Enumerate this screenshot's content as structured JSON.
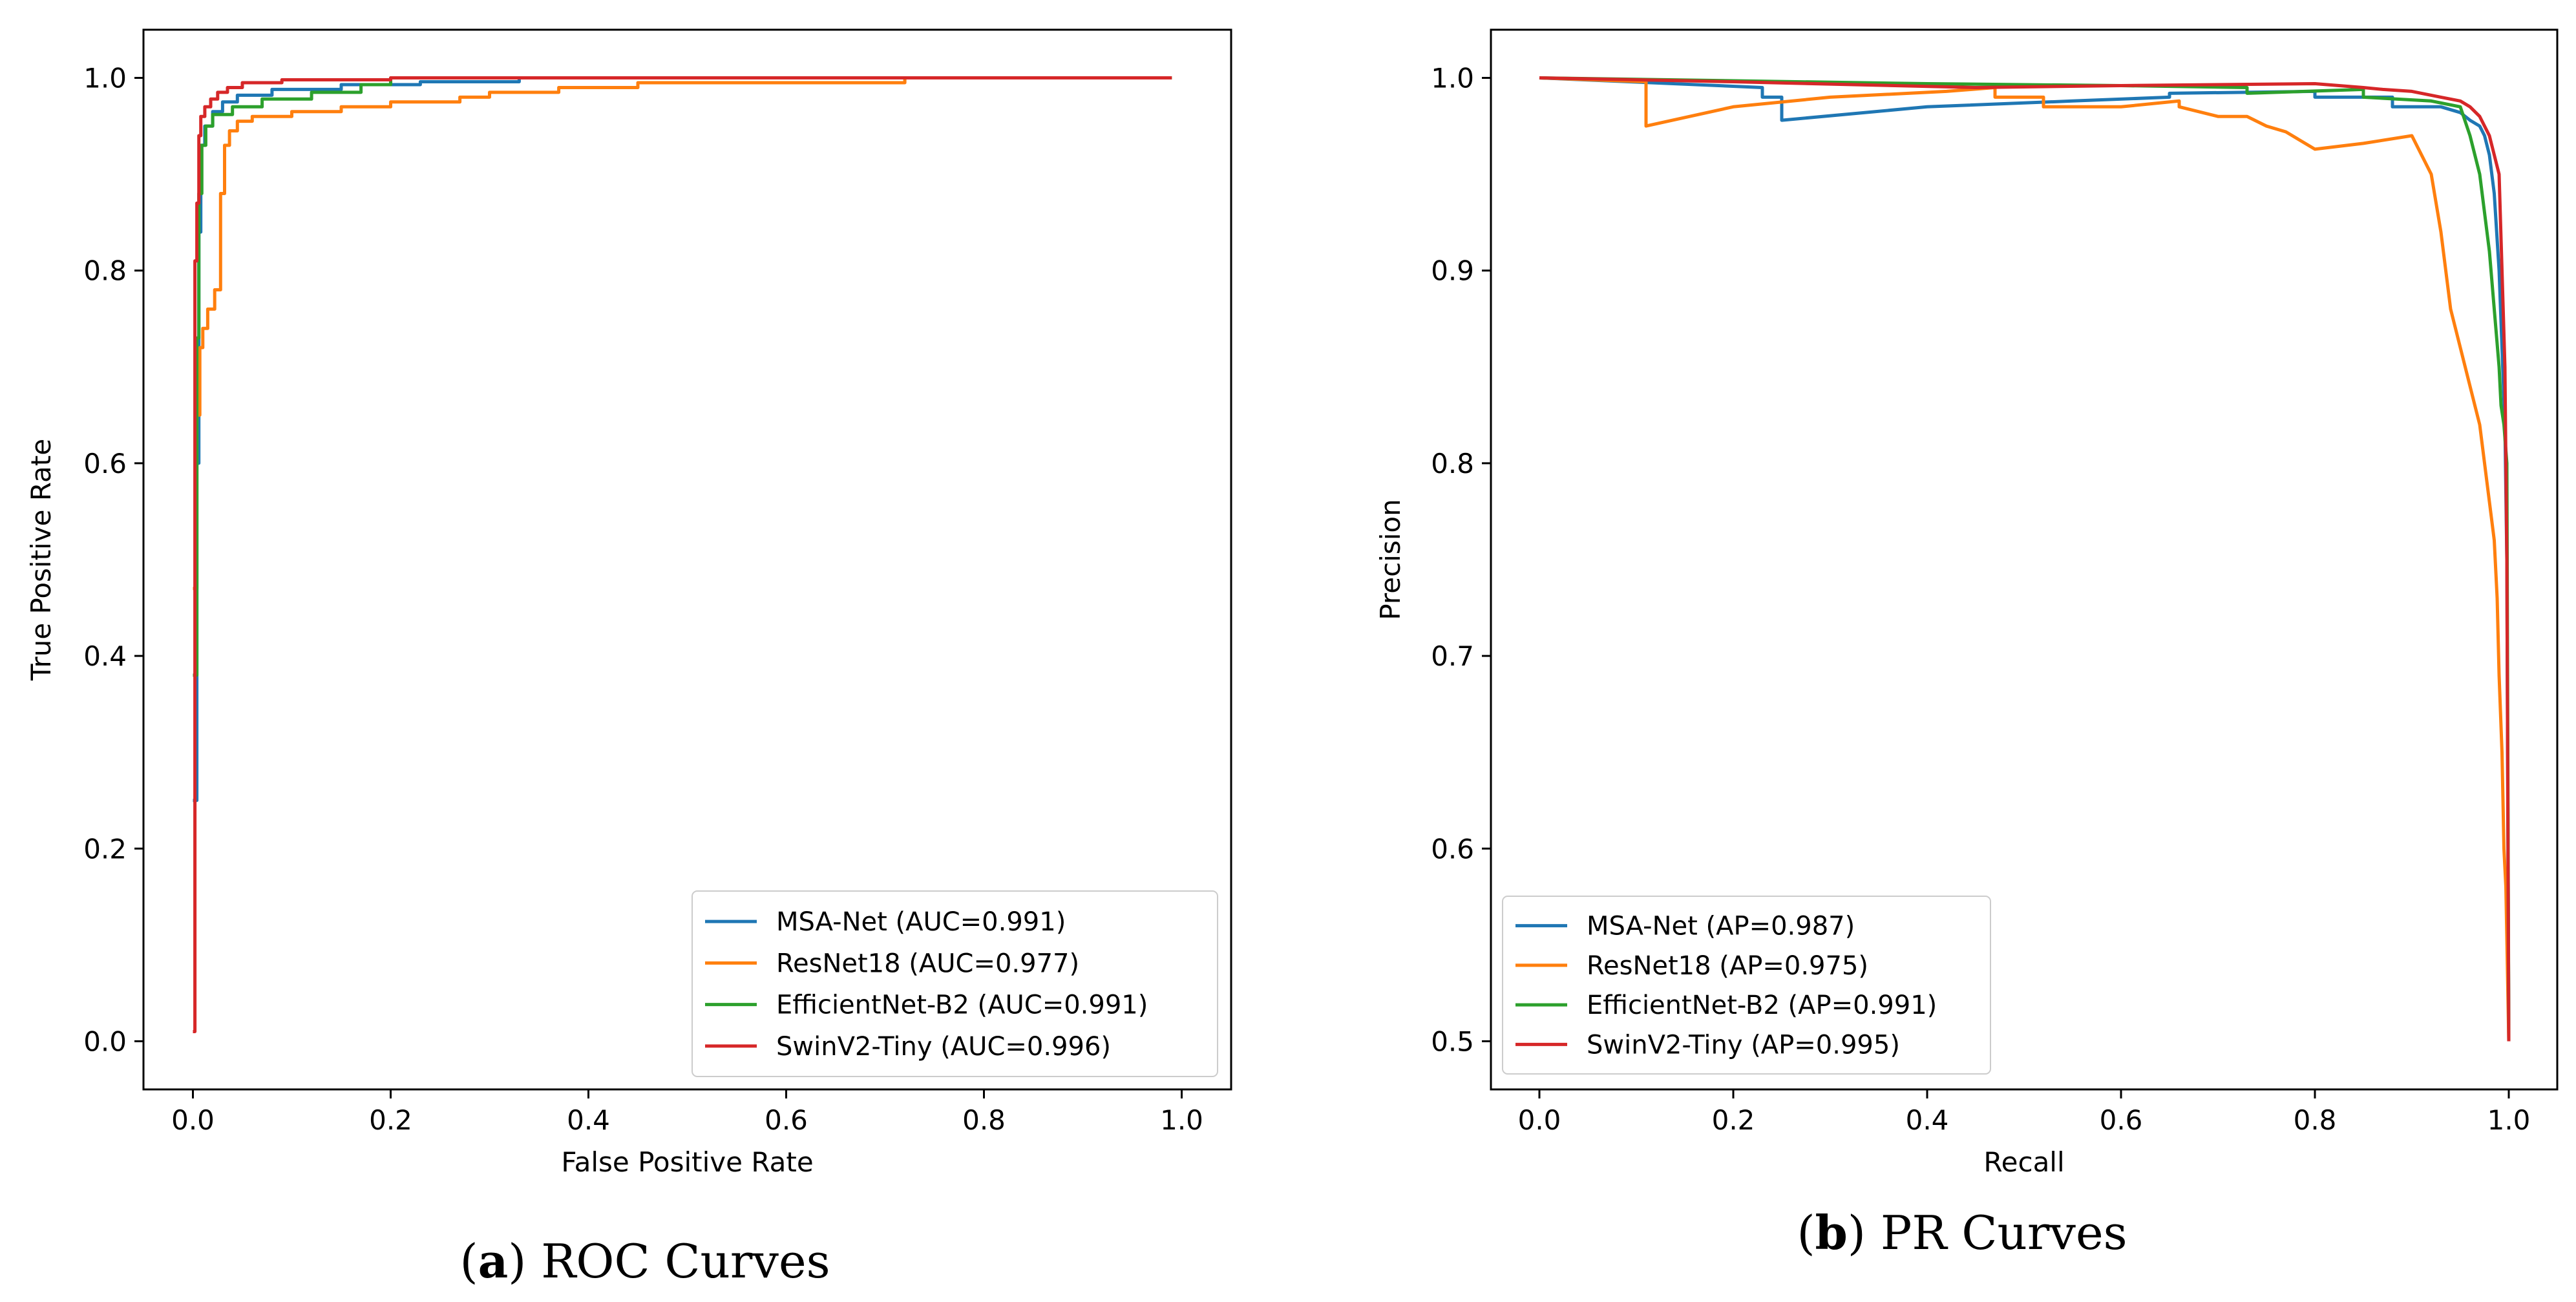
{
  "chart_data": [
    {
      "type": "line",
      "panel": "a",
      "caption_letter": "a",
      "caption_text": "ROC Curves",
      "xlabel": "False Positive Rate",
      "ylabel": "True Positive Rate",
      "xlim": [
        -0.05,
        1.05
      ],
      "ylim": [
        -0.05,
        1.05
      ],
      "xticks": [
        0.0,
        0.2,
        0.4,
        0.6,
        0.8,
        1.0
      ],
      "yticks": [
        0.0,
        0.2,
        0.4,
        0.6,
        0.8,
        1.0
      ],
      "tick_labels_x": [
        "0.0",
        "0.2",
        "0.4",
        "0.6",
        "0.8",
        "1.0"
      ],
      "tick_labels_y": [
        "0.0",
        "0.2",
        "0.4",
        "0.6",
        "0.8",
        "1.0"
      ],
      "grid": false,
      "legend_position": "lower-right",
      "series": [
        {
          "name": "MSA-Net",
          "label": "MSA-Net (AUC=0.991)",
          "color": "#1f77b4",
          "x": [
            0,
            0.004,
            0.004,
            0.006,
            0.006,
            0.008,
            0.008,
            0.012,
            0.012,
            0.02,
            0.02,
            0.03,
            0.03,
            0.045,
            0.045,
            0.08,
            0.08,
            0.15,
            0.15,
            0.23,
            0.23,
            0.33,
            0.33,
            0.99
          ],
          "y": [
            0.25,
            0.25,
            0.6,
            0.6,
            0.84,
            0.84,
            0.93,
            0.93,
            0.95,
            0.95,
            0.965,
            0.965,
            0.975,
            0.975,
            0.982,
            0.982,
            0.988,
            0.988,
            0.993,
            0.993,
            0.996,
            0.996,
            1.0,
            1.0
          ]
        },
        {
          "name": "ResNet18",
          "label": "ResNet18 (AUC=0.977)",
          "color": "#ff7f0e",
          "x": [
            0,
            0.004,
            0.004,
            0.007,
            0.007,
            0.01,
            0.01,
            0.015,
            0.015,
            0.022,
            0.022,
            0.028,
            0.028,
            0.032,
            0.032,
            0.037,
            0.037,
            0.045,
            0.045,
            0.06,
            0.06,
            0.1,
            0.1,
            0.15,
            0.15,
            0.2,
            0.2,
            0.27,
            0.27,
            0.3,
            0.3,
            0.37,
            0.37,
            0.45,
            0.45,
            0.72,
            0.72,
            0.99
          ],
          "y": [
            0.47,
            0.47,
            0.65,
            0.65,
            0.72,
            0.72,
            0.74,
            0.74,
            0.76,
            0.76,
            0.78,
            0.78,
            0.88,
            0.88,
            0.93,
            0.93,
            0.945,
            0.945,
            0.955,
            0.955,
            0.96,
            0.96,
            0.965,
            0.965,
            0.97,
            0.97,
            0.975,
            0.975,
            0.98,
            0.98,
            0.985,
            0.985,
            0.99,
            0.99,
            0.995,
            0.995,
            1.0,
            1.0
          ]
        },
        {
          "name": "EfficientNet-B2",
          "label": "EfficientNet-B2 (AUC=0.991)",
          "color": "#2ca02c",
          "x": [
            0,
            0.004,
            0.004,
            0.006,
            0.006,
            0.009,
            0.009,
            0.013,
            0.013,
            0.02,
            0.02,
            0.04,
            0.04,
            0.07,
            0.07,
            0.12,
            0.12,
            0.17,
            0.17,
            0.2,
            0.2,
            0.99
          ],
          "y": [
            0.38,
            0.38,
            0.73,
            0.73,
            0.88,
            0.88,
            0.93,
            0.93,
            0.95,
            0.95,
            0.962,
            0.962,
            0.97,
            0.97,
            0.978,
            0.978,
            0.985,
            0.985,
            0.993,
            0.993,
            1.0,
            1.0
          ]
        },
        {
          "name": "SwinV2-Tiny",
          "label": "SwinV2-Tiny (AUC=0.996)",
          "color": "#d62728",
          "x": [
            0,
            0.002,
            0.002,
            0.004,
            0.004,
            0.006,
            0.006,
            0.008,
            0.008,
            0.012,
            0.012,
            0.018,
            0.018,
            0.025,
            0.025,
            0.035,
            0.035,
            0.05,
            0.05,
            0.09,
            0.09,
            0.2,
            0.2,
            0.99
          ],
          "y": [
            0.01,
            0.01,
            0.81,
            0.81,
            0.87,
            0.87,
            0.94,
            0.94,
            0.96,
            0.96,
            0.97,
            0.97,
            0.978,
            0.978,
            0.985,
            0.985,
            0.99,
            0.99,
            0.995,
            0.995,
            0.998,
            0.998,
            1.0,
            1.0
          ]
        }
      ]
    },
    {
      "type": "line",
      "panel": "b",
      "caption_letter": "b",
      "caption_text": "PR Curves",
      "xlabel": "Recall",
      "ylabel": "Precision",
      "xlim": [
        -0.05,
        1.05
      ],
      "ylim": [
        0.475,
        1.025
      ],
      "xticks": [
        0.0,
        0.2,
        0.4,
        0.6,
        0.8,
        1.0
      ],
      "yticks": [
        0.5,
        0.6,
        0.7,
        0.8,
        0.9,
        1.0
      ],
      "tick_labels_x": [
        "0.0",
        "0.2",
        "0.4",
        "0.6",
        "0.8",
        "1.0"
      ],
      "tick_labels_y": [
        "0.5",
        "0.6",
        "0.7",
        "0.8",
        "0.9",
        "1.0"
      ],
      "grid": false,
      "legend_position": "lower-left",
      "series": [
        {
          "name": "MSA-Net",
          "label": "MSA-Net (AP=0.987)",
          "color": "#1f77b4",
          "x": [
            0,
            0.23,
            0.23,
            0.25,
            0.25,
            0.4,
            0.55,
            0.65,
            0.65,
            0.8,
            0.8,
            0.88,
            0.88,
            0.93,
            0.95,
            0.96,
            0.97,
            0.975,
            0.98,
            0.985,
            0.99,
            0.993,
            0.996,
            0.998,
            1.0
          ],
          "y": [
            1.0,
            0.995,
            0.99,
            0.99,
            0.978,
            0.985,
            0.988,
            0.99,
            0.992,
            0.993,
            0.99,
            0.99,
            0.985,
            0.985,
            0.982,
            0.978,
            0.975,
            0.97,
            0.96,
            0.94,
            0.9,
            0.86,
            0.82,
            0.75,
            0.5
          ]
        },
        {
          "name": "ResNet18",
          "label": "ResNet18 (AP=0.975)",
          "color": "#ff7f0e",
          "x": [
            0,
            0.11,
            0.11,
            0.2,
            0.3,
            0.42,
            0.47,
            0.47,
            0.52,
            0.52,
            0.6,
            0.66,
            0.66,
            0.7,
            0.73,
            0.75,
            0.77,
            0.8,
            0.85,
            0.9,
            0.92,
            0.93,
            0.94,
            0.95,
            0.96,
            0.965,
            0.97,
            0.975,
            0.98,
            0.985,
            0.988,
            0.99,
            0.993,
            0.995,
            0.997,
            1.0
          ],
          "y": [
            1.0,
            0.998,
            0.975,
            0.985,
            0.99,
            0.993,
            0.995,
            0.99,
            0.99,
            0.985,
            0.985,
            0.988,
            0.985,
            0.98,
            0.98,
            0.975,
            0.972,
            0.963,
            0.966,
            0.97,
            0.95,
            0.92,
            0.88,
            0.86,
            0.84,
            0.83,
            0.82,
            0.8,
            0.78,
            0.76,
            0.73,
            0.69,
            0.65,
            0.6,
            0.58,
            0.5
          ]
        },
        {
          "name": "EfficientNet-B2",
          "label": "EfficientNet-B2 (AP=0.991)",
          "color": "#2ca02c",
          "x": [
            0,
            0.4,
            0.6,
            0.73,
            0.73,
            0.85,
            0.85,
            0.92,
            0.95,
            0.96,
            0.97,
            0.975,
            0.98,
            0.985,
            0.99,
            0.992,
            0.995,
            0.998,
            1.0
          ],
          "y": [
            1.0,
            0.997,
            0.996,
            0.995,
            0.992,
            0.994,
            0.99,
            0.988,
            0.985,
            0.97,
            0.95,
            0.93,
            0.91,
            0.88,
            0.85,
            0.83,
            0.82,
            0.8,
            0.5
          ]
        },
        {
          "name": "SwinV2-Tiny",
          "label": "SwinV2-Tiny (AP=0.995)",
          "color": "#d62728",
          "x": [
            0,
            0.2,
            0.45,
            0.6,
            0.8,
            0.85,
            0.87,
            0.9,
            0.93,
            0.95,
            0.96,
            0.97,
            0.98,
            0.985,
            0.99,
            0.993,
            0.996,
            0.998,
            1.0
          ],
          "y": [
            1.0,
            0.998,
            0.995,
            0.996,
            0.997,
            0.995,
            0.994,
            0.993,
            0.99,
            0.988,
            0.985,
            0.98,
            0.97,
            0.96,
            0.95,
            0.9,
            0.85,
            0.75,
            0.5
          ]
        }
      ]
    }
  ]
}
